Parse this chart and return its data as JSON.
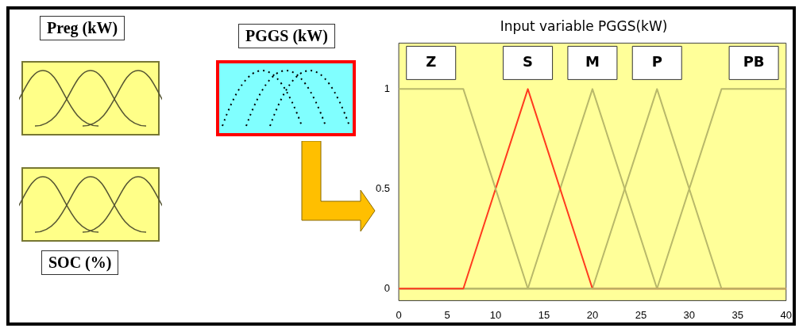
{
  "chart_data": {
    "type": "line",
    "title": "Input variable PGGS(kW)",
    "annotations": [
      "Preg (kW)",
      "SOC (%)",
      "PGGS (kW)"
    ],
    "series": [
      {
        "name": "Z",
        "color": "#b8b86a",
        "x": [
          0,
          6.67,
          13.33,
          40
        ],
        "values": [
          1,
          1,
          0,
          0
        ]
      },
      {
        "name": "S",
        "color": "#ff3b1f",
        "x": [
          0,
          6.67,
          13.33,
          20,
          40
        ],
        "values": [
          0,
          0,
          1,
          0,
          0
        ]
      },
      {
        "name": "M",
        "color": "#b8b86a",
        "x": [
          0,
          13.33,
          20,
          26.67,
          40
        ],
        "values": [
          0,
          0,
          1,
          0,
          0
        ]
      },
      {
        "name": "P",
        "color": "#b8b86a",
        "x": [
          0,
          20,
          26.67,
          33.33,
          40
        ],
        "values": [
          0,
          0,
          1,
          0,
          0
        ]
      },
      {
        "name": "PB",
        "color": "#b8b86a",
        "x": [
          0,
          26.67,
          33.33,
          40
        ],
        "values": [
          0,
          0,
          1,
          1
        ]
      }
    ],
    "xlim": [
      0,
      40
    ],
    "xticks": [
      0,
      5,
      10,
      15,
      20,
      25,
      30,
      35,
      40
    ],
    "ylim": [
      -0.06,
      1.23
    ],
    "yticks": [
      0,
      0.5,
      1
    ],
    "grid": false,
    "marker": "none",
    "line_style": "solid"
  }
}
